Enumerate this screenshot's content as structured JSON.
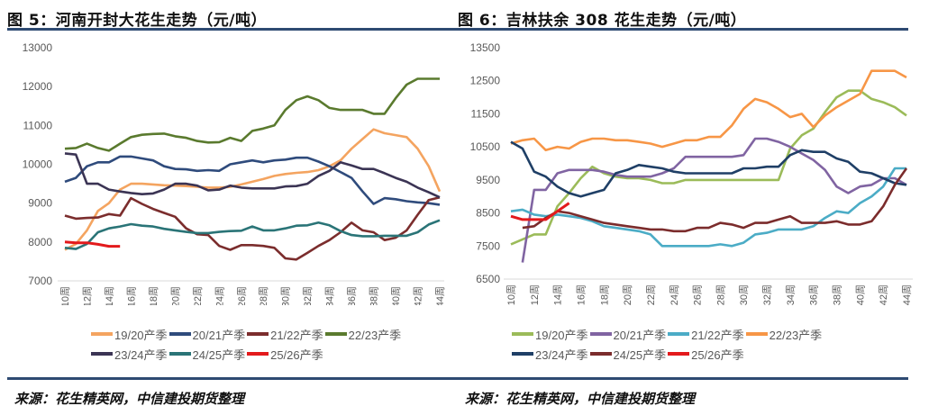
{
  "chart_data": [
    {
      "id": "henan",
      "type": "line",
      "title": "图 5：河南开封大花生走势（元/吨）",
      "source": "来源：花生精英网，中信建投期货整理",
      "xlabel": "",
      "ylabel": "",
      "ylim": [
        7000,
        13000
      ],
      "yticks": [
        7000,
        8000,
        9000,
        10000,
        11000,
        12000,
        13000
      ],
      "x_start_week": 10,
      "x_end_week": 44,
      "xtick_labels": [
        "10周",
        "12周",
        "14周",
        "16周",
        "18周",
        "20周",
        "22周",
        "24周",
        "26周",
        "28周",
        "30周",
        "32周",
        "34周",
        "36周",
        "38周",
        "40周",
        "42周",
        "44周"
      ],
      "grid": false,
      "legend_position": "bottom",
      "legend_rows": [
        [
          0,
          1,
          2,
          3
        ],
        [
          4,
          5,
          6
        ]
      ],
      "series": [
        {
          "name": "19/20产季",
          "color": "#f4a460",
          "values": [
            7800,
            7950,
            8300,
            8800,
            9000,
            9350,
            9500,
            9500,
            9480,
            9460,
            9450,
            9440,
            9420,
            9400,
            9400,
            9420,
            9480,
            9550,
            9620,
            9700,
            9750,
            9780,
            9800,
            9850,
            9950,
            10100,
            10400,
            10650,
            10900,
            10800,
            10750,
            10700,
            10400,
            9950,
            9300
          ]
        },
        {
          "name": "20/21产季",
          "color": "#2f4b7c",
          "values": [
            9550,
            9650,
            9950,
            10050,
            10050,
            10200,
            10200,
            10150,
            10100,
            9950,
            9880,
            9870,
            9830,
            9850,
            9830,
            10000,
            10050,
            10100,
            10050,
            10100,
            10120,
            10170,
            10170,
            10070,
            9950,
            9800,
            9650,
            9300,
            8980,
            9130,
            9100,
            9050,
            9020,
            9000,
            8960
          ]
        },
        {
          "name": "21/22产季",
          "color": "#7b2d2d",
          "values": [
            8680,
            8600,
            8620,
            8630,
            8720,
            8680,
            9130,
            8980,
            8850,
            8750,
            8650,
            8350,
            8200,
            8180,
            7900,
            7800,
            7920,
            7920,
            7900,
            7850,
            7580,
            7550,
            7720,
            7900,
            8050,
            8250,
            8500,
            8300,
            8250,
            8050,
            8110,
            8300,
            8700,
            9080,
            9150
          ]
        },
        {
          "name": "22/23产季",
          "color": "#5a7a2e",
          "values": [
            10400,
            10420,
            10530,
            10420,
            10350,
            10530,
            10700,
            10760,
            10780,
            10790,
            10720,
            10680,
            10600,
            10560,
            10570,
            10680,
            10600,
            10860,
            10920,
            11000,
            11400,
            11650,
            11750,
            11650,
            11450,
            11400,
            11400,
            11400,
            11300,
            11300,
            11700,
            12050,
            12200,
            12200,
            12200
          ]
        },
        {
          "name": "23/24产季",
          "color": "#3b3454",
          "values": [
            10280,
            10250,
            9500,
            9500,
            9350,
            9300,
            9260,
            9230,
            9250,
            9350,
            9500,
            9500,
            9450,
            9330,
            9350,
            9450,
            9400,
            9380,
            9380,
            9380,
            9430,
            9440,
            9500,
            9700,
            9830,
            10050,
            9970,
            9880,
            9880,
            9770,
            9650,
            9550,
            9400,
            9280,
            9150
          ]
        },
        {
          "name": "24/25产季",
          "color": "#2a7477",
          "values": [
            7850,
            7820,
            7950,
            8250,
            8350,
            8400,
            8460,
            8420,
            8400,
            8340,
            8300,
            8260,
            8230,
            8230,
            8260,
            8280,
            8290,
            8400,
            8300,
            8300,
            8350,
            8420,
            8430,
            8500,
            8430,
            8280,
            8180,
            8150,
            8150,
            8160,
            8160,
            8160,
            8250,
            8450,
            8560
          ]
        },
        {
          "name": "25/26产季",
          "color": "#e31a1c",
          "values": [
            8000,
            7980,
            7980,
            7940,
            7890,
            7890
          ]
        }
      ]
    },
    {
      "id": "jilin",
      "type": "line",
      "title": "图 6：吉林扶余 308 花生走势（元/吨）",
      "source": "来源：花生精英网，中信建投期货整理",
      "xlabel": "",
      "ylabel": "",
      "ylim": [
        6500,
        13500
      ],
      "yticks": [
        6500,
        7500,
        8500,
        9500,
        10500,
        11500,
        12500,
        13500
      ],
      "x_start_week": 10,
      "x_end_week": 44,
      "xtick_labels": [
        "10周",
        "12周",
        "14周",
        "16周",
        "18周",
        "20周",
        "22周",
        "24周",
        "26周",
        "28周",
        "30周",
        "32周",
        "34周",
        "36周",
        "38周",
        "40周",
        "42周",
        "44周"
      ],
      "grid": false,
      "legend_position": "bottom",
      "legend_rows": [
        [
          0,
          1,
          2,
          3
        ],
        [
          4,
          5,
          6
        ]
      ],
      "series": [
        {
          "name": "19/20产季",
          "color": "#9bbb59",
          "values": [
            7550,
            7700,
            7850,
            7850,
            8700,
            9100,
            9550,
            9900,
            9700,
            9600,
            9550,
            9550,
            9500,
            9400,
            9400,
            9500,
            9500,
            9500,
            9500,
            9500,
            9500,
            9500,
            9500,
            9500,
            10450,
            10850,
            11050,
            11550,
            12000,
            12200,
            12200,
            11950,
            11850,
            11700,
            11450
          ]
        },
        {
          "name": "20/21产季",
          "color": "#8064a2",
          "values": [
            null,
            7000,
            9200,
            9200,
            9700,
            9800,
            9800,
            9800,
            9750,
            9650,
            9600,
            9600,
            9600,
            9700,
            9850,
            10200,
            10200,
            10200,
            10200,
            10200,
            10250,
            10750,
            10750,
            10650,
            10500,
            10300,
            10100,
            9800,
            9300,
            9100,
            9300,
            9350,
            9550,
            9550,
            9350
          ]
        },
        {
          "name": "21/22产季",
          "color": "#4bacc6",
          "values": [
            8550,
            8600,
            8450,
            8400,
            8450,
            8400,
            8350,
            8250,
            8100,
            8050,
            8000,
            7950,
            7850,
            7500,
            7500,
            7500,
            7500,
            7500,
            7550,
            7500,
            7600,
            7850,
            7900,
            8000,
            8000,
            8000,
            8100,
            8350,
            8550,
            8500,
            8800,
            9000,
            9300,
            9850,
            9850
          ]
        },
        {
          "name": "22/23产季",
          "color": "#f79646",
          "values": [
            10600,
            10700,
            10750,
            10400,
            10500,
            10450,
            10650,
            10750,
            10750,
            10700,
            10700,
            10650,
            10600,
            10500,
            10600,
            10700,
            10700,
            10800,
            10800,
            11150,
            11650,
            11950,
            11850,
            11650,
            11400,
            11500,
            11100,
            11450,
            11700,
            11900,
            12100,
            12800,
            12800,
            12800,
            12600
          ]
        },
        {
          "name": "23/24产季",
          "color": "#1f3f66",
          "values": [
            10650,
            10450,
            9750,
            9600,
            9300,
            9100,
            9000,
            9100,
            9200,
            9700,
            9800,
            9950,
            9900,
            9850,
            9750,
            9700,
            9700,
            9700,
            9700,
            9700,
            9850,
            9850,
            9900,
            9900,
            10250,
            10400,
            10350,
            10350,
            10150,
            10050,
            9750,
            9700,
            9550,
            9400,
            9350
          ]
        },
        {
          "name": "24/25产季",
          "color": "#7b2c2c",
          "values": [
            null,
            8050,
            8100,
            8350,
            8550,
            8500,
            8400,
            8300,
            8200,
            8150,
            8100,
            8050,
            8000,
            8000,
            7950,
            7950,
            8050,
            8050,
            8200,
            8150,
            8050,
            8200,
            8200,
            8300,
            8400,
            8200,
            8200,
            8200,
            8250,
            8150,
            8150,
            8250,
            8700,
            9350,
            9850
          ]
        },
        {
          "name": "25/26产季",
          "color": "#e31a1c",
          "values": [
            8400,
            8300,
            8300,
            8300,
            8550,
            8800
          ]
        }
      ]
    }
  ]
}
